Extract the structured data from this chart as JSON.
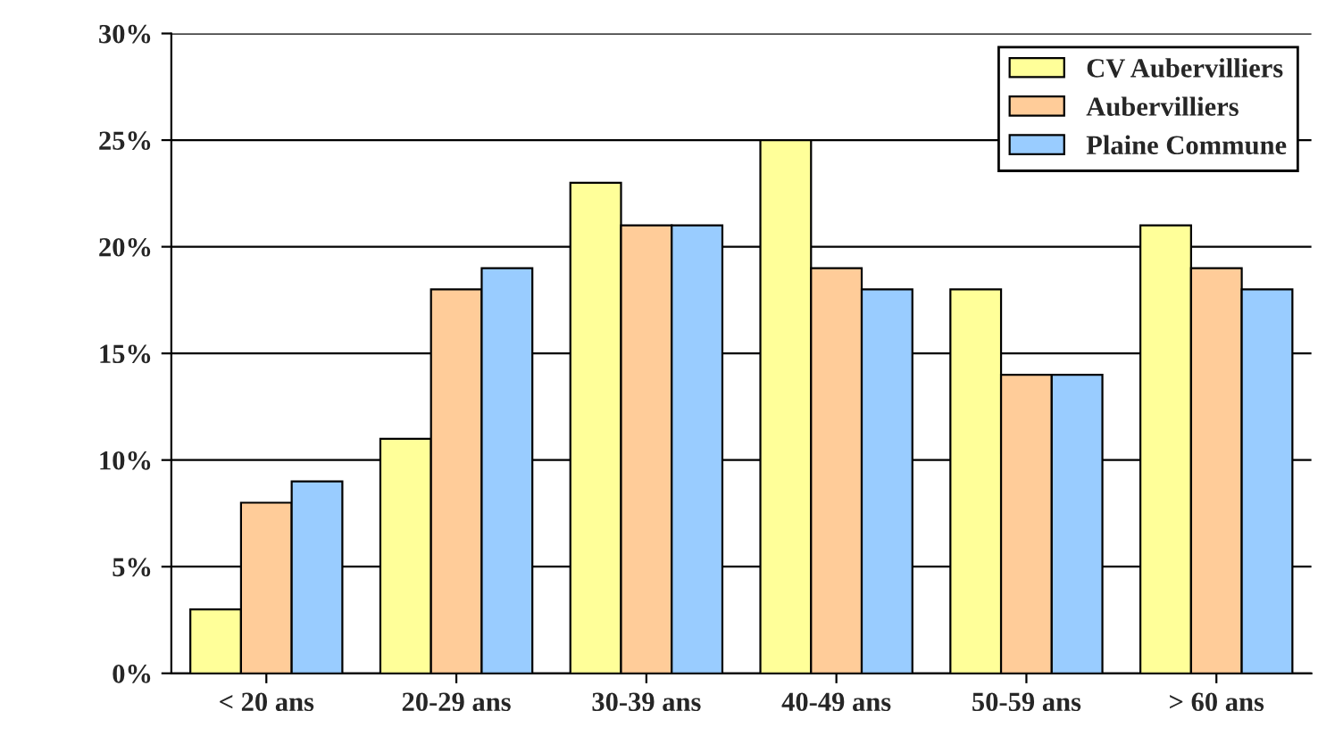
{
  "chart_data": {
    "type": "bar",
    "categories": [
      "< 20 ans",
      "20-29 ans",
      "30-39 ans",
      "40-49 ans",
      "50-59 ans",
      "> 60 ans"
    ],
    "series": [
      {
        "name": "CV Aubervilliers",
        "color": "#ffff99",
        "values": [
          3,
          11,
          23,
          25,
          18,
          21
        ]
      },
      {
        "name": "Aubervilliers",
        "color": "#ffcc99",
        "values": [
          8,
          18,
          21,
          19,
          14,
          19
        ]
      },
      {
        "name": "Plaine Commune",
        "color": "#99ccff",
        "values": [
          9,
          19,
          21,
          18,
          14,
          18
        ]
      }
    ],
    "ylim": [
      0,
      30
    ],
    "yticks": [
      {
        "value": 0,
        "label": "0%"
      },
      {
        "value": 5,
        "label": "5%"
      },
      {
        "value": 10,
        "label": "10%"
      },
      {
        "value": 15,
        "label": "15%"
      },
      {
        "value": 20,
        "label": "20%"
      },
      {
        "value": 25,
        "label": "25%"
      },
      {
        "value": 30,
        "label": "30%"
      }
    ],
    "grid": "y",
    "legend": "top right"
  }
}
